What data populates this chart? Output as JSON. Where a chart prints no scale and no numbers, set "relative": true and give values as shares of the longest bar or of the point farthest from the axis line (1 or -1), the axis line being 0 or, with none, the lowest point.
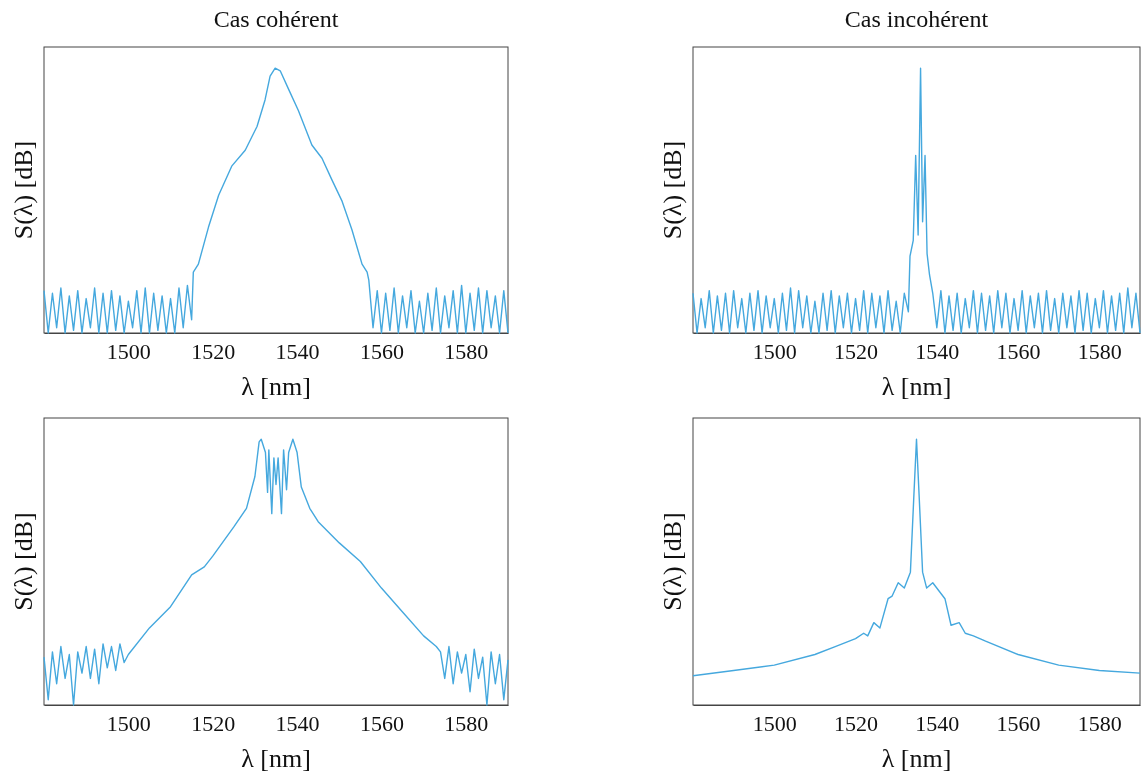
{
  "chart_data": [
    {
      "type": "line",
      "relative": true,
      "title": "Cas cohérent",
      "xlabel": "λ [nm]",
      "ylabel": "S(λ) [dB]",
      "xlim": [
        1480,
        1590
      ],
      "xticks": [
        1500,
        1520,
        1540,
        1560,
        1580
      ],
      "grid": false,
      "series": [
        {
          "color": "#45a8de",
          "x": [
            1480,
            1481,
            1482,
            1483,
            1484,
            1485,
            1486,
            1487,
            1488,
            1489,
            1490,
            1491,
            1492,
            1493,
            1494,
            1495,
            1496,
            1497,
            1498,
            1499,
            1500,
            1501,
            1502,
            1503,
            1504,
            1505,
            1506,
            1507,
            1508,
            1509,
            1510,
            1511,
            1512,
            1513,
            1514,
            1515,
            1515.4,
            1516.6,
            1519,
            1521.4,
            1524.5,
            1527.7,
            1530.5,
            1532.4,
            1533.6,
            1534.8,
            1536,
            1538,
            1540.3,
            1543.5,
            1545.9,
            1548.2,
            1550.6,
            1553,
            1555.4,
            1556.6,
            1557,
            1558,
            1559,
            1560,
            1561,
            1562,
            1563,
            1564,
            1565,
            1566,
            1567,
            1568,
            1569,
            1570,
            1571,
            1572,
            1573,
            1574,
            1575,
            1576,
            1577,
            1578,
            1579,
            1580,
            1581,
            1582,
            1583,
            1584,
            1585,
            1586,
            1587,
            1588,
            1589,
            1590
          ],
          "values": [
            0.16,
            0,
            0.15,
            0.02,
            0.17,
            0,
            0.14,
            0.01,
            0.16,
            0,
            0.13,
            0.02,
            0.17,
            0,
            0.15,
            0,
            0.16,
            0.01,
            0.14,
            0,
            0.12,
            0.02,
            0.16,
            0,
            0.17,
            0,
            0.15,
            0.01,
            0.14,
            0,
            0.13,
            0,
            0.17,
            0.02,
            0.18,
            0.05,
            0.23,
            0.26,
            0.4,
            0.52,
            0.63,
            0.69,
            0.78,
            0.88,
            0.97,
            1,
            0.99,
            0.92,
            0.84,
            0.71,
            0.66,
            0.58,
            0.5,
            0.39,
            0.26,
            0.23,
            0.2,
            0.02,
            0.16,
            0,
            0.15,
            0.01,
            0.17,
            0,
            0.14,
            0.02,
            0.16,
            0,
            0.12,
            0,
            0.15,
            0.01,
            0.17,
            0,
            0.14,
            0.02,
            0.16,
            0,
            0.18,
            0,
            0.15,
            0.01,
            0.17,
            0,
            0.16,
            0.02,
            0.14,
            0,
            0.16,
            0
          ]
        }
      ]
    },
    {
      "type": "line",
      "relative": true,
      "title": "Cas incohérent",
      "xlabel": "λ [nm]",
      "ylabel": "S(λ) [dB]",
      "xlim": [
        1480,
        1590
      ],
      "xticks": [
        1500,
        1520,
        1540,
        1560,
        1580
      ],
      "grid": false,
      "series": [
        {
          "color": "#45a8de",
          "x": [
            1480,
            1481,
            1482,
            1483,
            1484,
            1485,
            1486,
            1487,
            1488,
            1489,
            1490,
            1491,
            1492,
            1493,
            1494,
            1495,
            1496,
            1497,
            1498,
            1499,
            1500,
            1501,
            1502,
            1503,
            1504,
            1505,
            1506,
            1507,
            1508,
            1509,
            1510,
            1511,
            1512,
            1513,
            1514,
            1515,
            1516,
            1517,
            1518,
            1519,
            1520,
            1521,
            1522,
            1523,
            1524,
            1525,
            1526,
            1527,
            1528,
            1529,
            1530,
            1531,
            1532,
            1533,
            1533.4,
            1534.2,
            1534.8,
            1535.4,
            1536,
            1536.5,
            1537.1,
            1537.6,
            1538.2,
            1539,
            1540,
            1541,
            1542,
            1543,
            1544,
            1545,
            1546,
            1547,
            1548,
            1549,
            1550,
            1551,
            1552,
            1553,
            1554,
            1555,
            1556,
            1557,
            1558,
            1559,
            1560,
            1561,
            1562,
            1563,
            1564,
            1565,
            1566,
            1567,
            1568,
            1569,
            1570,
            1571,
            1572,
            1573,
            1574,
            1575,
            1576,
            1577,
            1578,
            1579,
            1580,
            1581,
            1582,
            1583,
            1584,
            1585,
            1586,
            1587,
            1588,
            1589,
            1590
          ],
          "values": [
            0.15,
            0,
            0.13,
            0.02,
            0.16,
            0,
            0.14,
            0.01,
            0.15,
            0,
            0.16,
            0.02,
            0.13,
            0,
            0.15,
            0.01,
            0.16,
            0,
            0.14,
            0.02,
            0.13,
            0,
            0.15,
            0.01,
            0.17,
            0,
            0.16,
            0.02,
            0.14,
            0,
            0.12,
            0,
            0.15,
            0.01,
            0.16,
            0,
            0.14,
            0.02,
            0.15,
            0,
            0.13,
            0.01,
            0.16,
            0,
            0.15,
            0.02,
            0.14,
            0,
            0.16,
            0.01,
            0.12,
            0,
            0.15,
            0.08,
            0.29,
            0.35,
            0.67,
            0.37,
            1,
            0.42,
            0.67,
            0.3,
            0.22,
            0.15,
            0.02,
            0.16,
            0,
            0.14,
            0.01,
            0.15,
            0,
            0.13,
            0.02,
            0.16,
            0,
            0.15,
            0.01,
            0.14,
            0,
            0.16,
            0.02,
            0.15,
            0,
            0.13,
            0.01,
            0.16,
            0,
            0.14,
            0.02,
            0.15,
            0,
            0.16,
            0.01,
            0.13,
            0,
            0.15,
            0.02,
            0.14,
            0,
            0.16,
            0.01,
            0.15,
            0,
            0.13,
            0.02,
            0.16,
            0,
            0.14,
            0.01,
            0.15,
            0,
            0.17,
            0.02,
            0.15,
            0
          ]
        }
      ]
    },
    {
      "type": "line",
      "relative": true,
      "xlabel": "λ [nm]",
      "ylabel": "S(λ) [dB]",
      "xlim": [
        1480,
        1590
      ],
      "xticks": [
        1500,
        1520,
        1540,
        1560,
        1580
      ],
      "grid": false,
      "series": [
        {
          "color": "#45a8de",
          "x": [
            1480,
            1481,
            1482,
            1483,
            1484,
            1485,
            1486,
            1487,
            1488,
            1489,
            1490,
            1491,
            1492,
            1493,
            1494,
            1495,
            1496,
            1497,
            1498,
            1499,
            1500,
            1505,
            1510,
            1515,
            1518,
            1520,
            1525,
            1528,
            1530,
            1531,
            1531.5,
            1532.5,
            1533,
            1533.3,
            1534,
            1534.5,
            1535,
            1535.5,
            1536.3,
            1536.8,
            1537.5,
            1538,
            1539,
            1540,
            1541,
            1543,
            1545,
            1550,
            1555,
            1560,
            1565,
            1570,
            1573,
            1574,
            1575,
            1576,
            1577,
            1578,
            1579,
            1580,
            1581,
            1582,
            1583,
            1584,
            1585,
            1586,
            1587,
            1588,
            1589,
            1590
          ],
          "values": [
            0.18,
            0.02,
            0.2,
            0.08,
            0.22,
            0.1,
            0.19,
            0,
            0.2,
            0.12,
            0.22,
            0.1,
            0.21,
            0.08,
            0.23,
            0.14,
            0.22,
            0.13,
            0.23,
            0.16,
            0.19,
            0.29,
            0.37,
            0.49,
            0.52,
            0.56,
            0.67,
            0.74,
            0.86,
            0.99,
            1,
            0.95,
            0.8,
            0.96,
            0.72,
            0.93,
            0.83,
            0.93,
            0.72,
            0.96,
            0.81,
            0.95,
            1,
            0.95,
            0.82,
            0.74,
            0.69,
            0.61,
            0.54,
            0.44,
            0.35,
            0.26,
            0.22,
            0.2,
            0.1,
            0.22,
            0.08,
            0.2,
            0.12,
            0.19,
            0.05,
            0.21,
            0.1,
            0.18,
            0,
            0.2,
            0.08,
            0.19,
            0.02,
            0.17
          ]
        }
      ]
    },
    {
      "type": "line",
      "relative": true,
      "xlabel": "λ [nm]",
      "ylabel": "S(λ) [dB]",
      "xlim": [
        1480,
        1590
      ],
      "xticks": [
        1500,
        1520,
        1540,
        1560,
        1580
      ],
      "grid": false,
      "series": [
        {
          "color": "#45a8de",
          "x": [
            1480,
            1490,
            1500,
            1510,
            1515,
            1520,
            1522,
            1523,
            1524.5,
            1526,
            1528,
            1529,
            1530.5,
            1532,
            1533.5,
            1534.3,
            1535,
            1535.7,
            1536.5,
            1537.5,
            1539,
            1540.5,
            1542,
            1543.5,
            1545.5,
            1547,
            1549,
            1552,
            1560,
            1570,
            1580,
            1590
          ],
          "values": [
            0.11,
            0.13,
            0.15,
            0.19,
            0.22,
            0.25,
            0.27,
            0.26,
            0.31,
            0.29,
            0.4,
            0.41,
            0.46,
            0.44,
            0.5,
            0.77,
            1,
            0.77,
            0.5,
            0.44,
            0.46,
            0.43,
            0.4,
            0.3,
            0.31,
            0.27,
            0.26,
            0.24,
            0.19,
            0.15,
            0.13,
            0.12
          ]
        }
      ]
    }
  ]
}
